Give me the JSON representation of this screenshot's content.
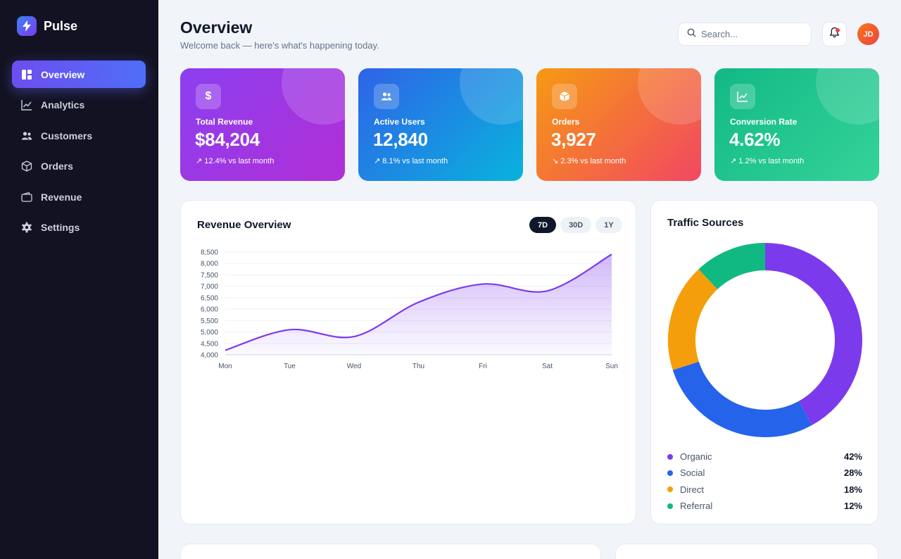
{
  "brand": {
    "name": "Pulse"
  },
  "sidebar": {
    "items": [
      {
        "label": "Overview",
        "icon": "grid-icon"
      },
      {
        "label": "Analytics",
        "icon": "chart-line-icon"
      },
      {
        "label": "Customers",
        "icon": "users-icon"
      },
      {
        "label": "Orders",
        "icon": "box-icon"
      },
      {
        "label": "Revenue",
        "icon": "wallet-icon"
      },
      {
        "label": "Settings",
        "icon": "gear-icon"
      }
    ],
    "active_index": 0
  },
  "header": {
    "title": "Overview",
    "subtitle": "Welcome back — here's what's happening today.",
    "search_placeholder": "Search...",
    "avatar_initials": "JD"
  },
  "stats": [
    {
      "label": "Total Revenue",
      "value": "$84,204",
      "change": "↗ 12.4% vs last month",
      "icon": "dollar-icon"
    },
    {
      "label": "Active Users",
      "value": "12,840",
      "change": "↗ 8.1% vs last month",
      "icon": "users-icon"
    },
    {
      "label": "Orders",
      "value": "3,927",
      "change": "↘ 2.3% vs last month",
      "icon": "box-icon"
    },
    {
      "label": "Conversion Rate",
      "value": "4.62%",
      "change": "↗ 1.2% vs last month",
      "icon": "chart-line-icon"
    }
  ],
  "revenue": {
    "title": "Revenue Overview",
    "ranges": [
      "7D",
      "30D",
      "1Y"
    ],
    "active_range": 0
  },
  "traffic": {
    "title": "Traffic Sources",
    "items": [
      {
        "name": "Organic",
        "percent": "42%",
        "value": 42,
        "color": "#7c3aed"
      },
      {
        "name": "Social",
        "percent": "28%",
        "value": 28,
        "color": "#2563eb"
      },
      {
        "name": "Direct",
        "percent": "18%",
        "value": 18,
        "color": "#f59e0b"
      },
      {
        "name": "Referral",
        "percent": "12%",
        "value": 12,
        "color": "#10b981"
      }
    ]
  },
  "chart_data": [
    {
      "type": "area",
      "title": "Revenue Overview",
      "categories": [
        "Mon",
        "Tue",
        "Wed",
        "Thu",
        "Fri",
        "Sat",
        "Sun"
      ],
      "values": [
        4200,
        5100,
        4800,
        6300,
        7100,
        6800,
        8400
      ],
      "ylim": [
        4000,
        8500
      ],
      "yticks": [
        4000,
        4500,
        5000,
        5500,
        6000,
        6500,
        7000,
        7500,
        8000,
        8500
      ],
      "color": "#7c3aed",
      "grid": true
    },
    {
      "type": "pie",
      "title": "Traffic Sources",
      "categories": [
        "Organic",
        "Social",
        "Direct",
        "Referral"
      ],
      "values": [
        42,
        28,
        18,
        12
      ],
      "colors": [
        "#7c3aed",
        "#2563eb",
        "#f59e0b",
        "#10b981"
      ],
      "donut": true,
      "legend": "bottom"
    }
  ]
}
